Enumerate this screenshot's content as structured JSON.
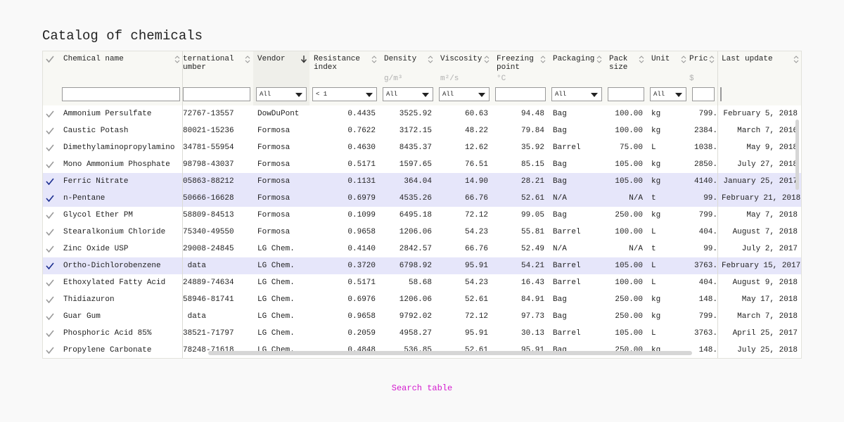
{
  "header": {
    "title": "Catalog of chemicals"
  },
  "table": {
    "columns": [
      {
        "name": "Chemical name"
      },
      {
        "name": "ternational umber"
      },
      {
        "name": "Vendor",
        "filter": "All",
        "sort": "descending"
      },
      {
        "name": "Resistance index",
        "filter": "< 1"
      },
      {
        "name": "Density",
        "unit": "g/m³",
        "filter": "All"
      },
      {
        "name": "Viscosity",
        "unit": "m²/s",
        "filter": "All"
      },
      {
        "name": "Freezing point",
        "unit": "°C"
      },
      {
        "name": "Packaging",
        "filter": "All"
      },
      {
        "name": "Pack size"
      },
      {
        "name": "Unit",
        "filter": "All"
      },
      {
        "name": "Price",
        "unit": "$"
      },
      {
        "name": "Last update"
      }
    ],
    "rows": [
      {
        "selected": false,
        "cells": [
          "Ammonium Persulfate",
          "72767-13557",
          "DowDuPont",
          "0.4435",
          "3525.92",
          "60.63",
          "94.48",
          "Bag",
          "100.00",
          "kg",
          "799.",
          "February 5, 2018"
        ]
      },
      {
        "selected": false,
        "cells": [
          "Caustic Potash",
          "80021-15236",
          "Formosa",
          "0.7622",
          "3172.15",
          "48.22",
          "79.84",
          "Bag",
          "100.00",
          "kg",
          "2384.",
          "March 7, 2016"
        ]
      },
      {
        "selected": false,
        "cells": [
          "Dimethylaminopropylamino",
          "34781-55954",
          "Formosa",
          "0.4630",
          "8435.37",
          "12.62",
          "35.92",
          "Barrel",
          "75.00",
          "L",
          "1038.",
          "May 9, 2018"
        ]
      },
      {
        "selected": false,
        "cells": [
          "Mono Ammonium Phosphate",
          "98798-43037",
          "Formosa",
          "0.5171",
          "1597.65",
          "76.51",
          "85.15",
          "Bag",
          "105.00",
          "kg",
          "2850.",
          "July 27, 2018"
        ]
      },
      {
        "selected": true,
        "cells": [
          "Ferric Nitrate",
          "05863-88212",
          "Formosa",
          "0.1131",
          "364.04",
          "14.90",
          "28.21",
          "Bag",
          "105.00",
          "kg",
          "4140.",
          "January 25, 2017"
        ]
      },
      {
        "selected": true,
        "cells": [
          "n-Pentane",
          "50666-16628",
          "Formosa",
          "0.6979",
          "4535.26",
          "66.76",
          "52.61",
          "N/A",
          "N/A",
          "t",
          "99.",
          "February 21, 2018"
        ]
      },
      {
        "selected": false,
        "cells": [
          "Glycol Ether PM",
          "58809-84513",
          "Formosa",
          "0.1099",
          "6495.18",
          "72.12",
          "99.05",
          "Bag",
          "250.00",
          "kg",
          "799.",
          "May 7, 2018"
        ]
      },
      {
        "selected": false,
        "cells": [
          "Stearalkonium Chloride",
          "75340-49550",
          "Formosa",
          "0.9658",
          "1206.06",
          "54.23",
          "55.81",
          "Barrel",
          "100.00",
          "L",
          "404.",
          "August 7, 2018"
        ]
      },
      {
        "selected": false,
        "cells": [
          "Zinc Oxide USP",
          "29008-24845",
          "LG Chem.",
          "0.4140",
          "2842.57",
          "66.76",
          "52.49",
          "N/A",
          "N/A",
          "t",
          "99.",
          "July 2, 2017"
        ]
      },
      {
        "selected": true,
        "cells": [
          "Ortho-Dichlorobenzene",
          " data",
          "LG Chem.",
          "0.3720",
          "6798.92",
          "95.91",
          "54.21",
          "Barrel",
          "105.00",
          "L",
          "3763.",
          "February 15, 2017"
        ]
      },
      {
        "selected": false,
        "cells": [
          "Ethoxylated Fatty Acid",
          "24889-74634",
          "LG Chem.",
          "0.5171",
          "58.68",
          "54.23",
          "16.43",
          "Barrel",
          "100.00",
          "L",
          "404.",
          "August 9, 2018"
        ]
      },
      {
        "selected": false,
        "cells": [
          "Thidiazuron",
          "58946-81741",
          "LG Chem.",
          "0.6976",
          "1206.06",
          "52.61",
          "84.91",
          "Bag",
          "250.00",
          "kg",
          "148.",
          "May 17, 2018"
        ]
      },
      {
        "selected": false,
        "cells": [
          "Guar Gum",
          " data",
          "LG Chem.",
          "0.9658",
          "9792.02",
          "72.12",
          "97.73",
          "Bag",
          "250.00",
          "kg",
          "799.",
          "March 7, 2018"
        ]
      },
      {
        "selected": false,
        "cells": [
          "Phosphoric Acid 85%",
          "38521-71797",
          "LG Chem.",
          "0.2059",
          "4958.27",
          "95.91",
          "30.13",
          "Barrel",
          "105.00",
          "L",
          "3763.",
          "April 25, 2017"
        ]
      },
      {
        "selected": false,
        "cells": [
          "Propylene Carbonate",
          "78248-71618",
          "LG Chem.",
          "0.4848",
          "536.85",
          "52.61",
          "95.91",
          "Bag",
          "250.00",
          "kg",
          "148.",
          "July 25, 2018"
        ]
      }
    ]
  },
  "footer": {
    "link": "Search table"
  }
}
